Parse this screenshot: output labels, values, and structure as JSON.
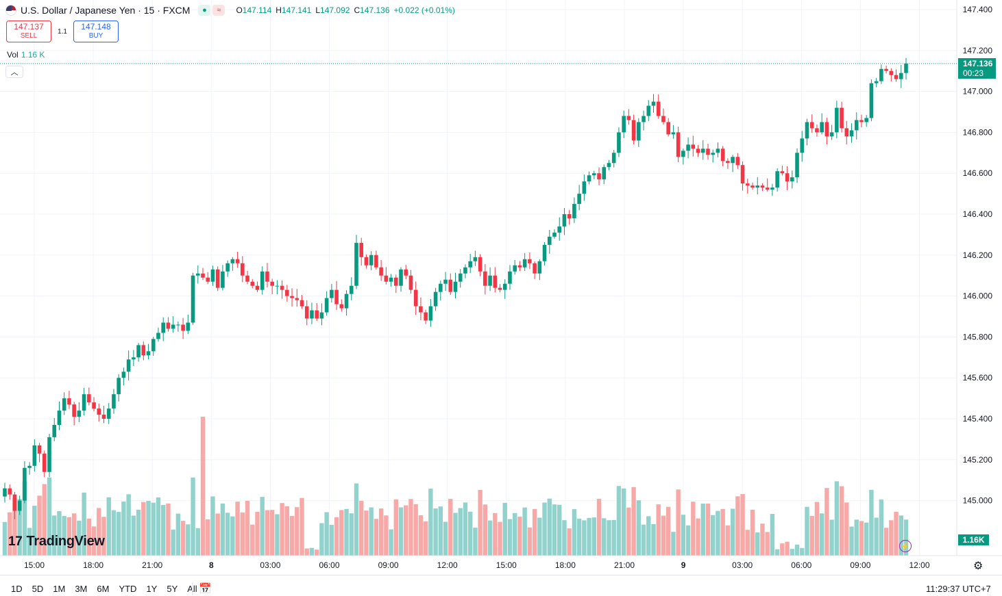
{
  "header": {
    "symbol_title": "U.S. Dollar / Japanese Yen · 15 · FXCM",
    "pill_icon_1": "dot-icon",
    "pill_icon_2": "wave-icon",
    "o_label": "O",
    "o_value": "147.114",
    "h_label": "H",
    "h_value": "147.141",
    "l_label": "L",
    "l_value": "147.092",
    "c_label": "C",
    "c_value": "147.136",
    "change": "+0.022 (+0.01%)"
  },
  "trade": {
    "sell_price": "147.137",
    "sell_label": "SELL",
    "spread": "1.1",
    "buy_price": "147.148",
    "buy_label": "BUY"
  },
  "volume": {
    "label": "Vol",
    "value": "1.16 K",
    "axis_tag": "1.16K"
  },
  "price_tag": {
    "price": "147.136",
    "countdown": "00:23"
  },
  "logo": {
    "text": "TradingView",
    "mark": "17"
  },
  "bottom": {
    "ranges": [
      "1D",
      "5D",
      "1M",
      "3M",
      "6M",
      "YTD",
      "1Y",
      "5Y",
      "All"
    ],
    "clock": "11:29:37 UTC+7"
  },
  "colors": {
    "up": "#089981",
    "down": "#f23645",
    "vol_up": "#92d2cc",
    "vol_down": "#f7a9a7",
    "grid": "#f0f3fa"
  },
  "chart_data": {
    "type": "candlestick",
    "symbol": "USDJPY",
    "interval": "15",
    "y_axis": {
      "ticks": [
        "147.400",
        "147.200",
        "147.000",
        "146.800",
        "146.600",
        "146.400",
        "146.200",
        "146.000",
        "145.800",
        "145.600",
        "145.400",
        "145.200",
        "145.000"
      ],
      "range": [
        144.75,
        147.45
      ]
    },
    "x_axis": {
      "ticks": [
        "15:00",
        "18:00",
        "21:00",
        "8",
        "03:00",
        "06:00",
        "09:00",
        "12:00",
        "15:00",
        "18:00",
        "21:00",
        "9",
        "03:00",
        "06:00",
        "09:00",
        "12:00"
      ]
    },
    "last_price": 147.136,
    "candles_close": [
      145.06,
      145.03,
      144.95,
      145.0,
      145.16,
      145.17,
      145.27,
      145.23,
      145.14,
      145.31,
      145.37,
      145.44,
      145.5,
      145.47,
      145.41,
      145.44,
      145.52,
      145.48,
      145.45,
      145.42,
      145.4,
      145.45,
      145.52,
      145.6,
      145.63,
      145.69,
      145.7,
      145.76,
      145.71,
      145.73,
      145.79,
      145.82,
      145.87,
      145.84,
      145.86,
      145.86,
      145.83,
      145.87,
      146.1,
      146.11,
      146.09,
      146.07,
      146.13,
      146.04,
      146.12,
      146.16,
      146.18,
      146.16,
      146.1,
      146.07,
      146.05,
      146.03,
      146.12,
      146.07,
      146.05,
      146.05,
      146.03,
      146.0,
      145.99,
      145.98,
      145.95,
      145.89,
      145.93,
      145.89,
      145.92,
      145.99,
      146.03,
      145.96,
      145.94,
      146.01,
      146.05,
      146.26,
      146.19,
      146.15,
      146.2,
      146.14,
      146.1,
      146.07,
      146.09,
      146.05,
      146.13,
      146.1,
      146.03,
      145.95,
      145.92,
      145.88,
      145.95,
      146.02,
      146.06,
      146.08,
      146.02,
      146.07,
      146.11,
      146.14,
      146.17,
      146.19,
      146.12,
      146.05,
      146.1,
      146.04,
      146.03,
      146.06,
      146.12,
      146.15,
      146.14,
      146.18,
      146.16,
      146.11,
      146.17,
      146.25,
      146.29,
      146.31,
      146.34,
      146.4,
      146.38,
      146.45,
      146.5,
      146.56,
      146.59,
      146.6,
      146.57,
      146.63,
      146.65,
      146.7,
      146.8,
      146.88,
      146.86,
      146.76,
      146.85,
      146.88,
      146.93,
      146.95,
      146.88,
      146.85,
      146.79,
      146.8,
      146.68,
      146.71,
      146.74,
      146.72,
      146.7,
      146.72,
      146.69,
      146.7,
      146.72,
      146.66,
      146.65,
      146.68,
      146.64,
      146.55,
      146.54,
      146.53,
      146.54,
      146.53,
      146.52,
      146.53,
      146.61,
      146.6,
      146.56,
      146.58,
      146.7,
      146.77,
      146.85,
      146.82,
      146.8,
      146.85,
      146.78,
      146.8,
      146.92,
      146.82,
      146.78,
      146.81,
      146.86,
      146.85,
      146.87,
      147.04,
      147.05,
      147.11,
      147.1,
      147.08,
      147.06,
      147.09,
      147.136
    ]
  }
}
